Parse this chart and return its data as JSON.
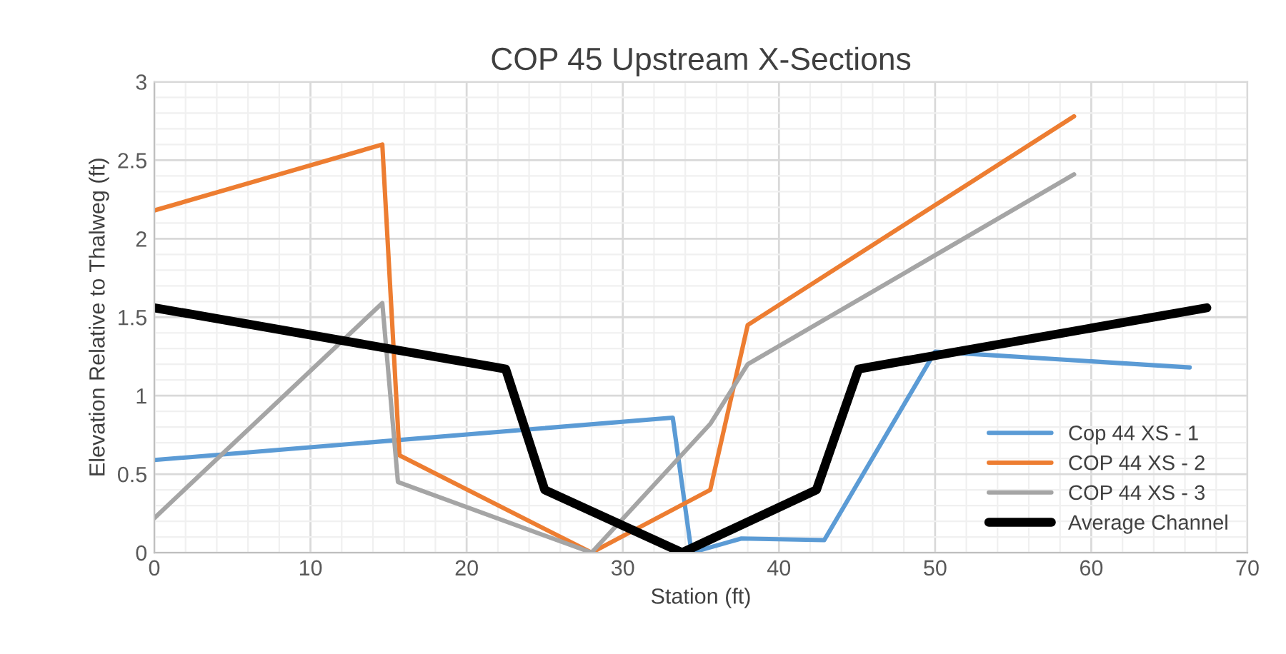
{
  "chart_data": {
    "type": "line",
    "title": "COP 45 Upstream X-Sections",
    "xlabel": "Station (ft)",
    "ylabel": "Elevation Relative to Thalweg (ft)",
    "xlim": [
      0,
      70
    ],
    "xticks": [
      0,
      10,
      20,
      30,
      40,
      50,
      60,
      70
    ],
    "ylim": [
      0,
      3
    ],
    "yticks": [
      0,
      0.5,
      1,
      1.5,
      2,
      2.5,
      3
    ],
    "grid": true,
    "legend": "bottom right",
    "marker": "none",
    "line_style": "solid",
    "series": [
      {
        "name": "Cop 44 XS - 1",
        "color": "#5b9bd5",
        "x": [
          0,
          33.2,
          34.4,
          37.6,
          42.9,
          50.0,
          66.3
        ],
        "values": [
          0.59,
          0.86,
          0,
          0.09,
          0.08,
          1.28,
          1.18
        ]
      },
      {
        "name": "COP 44 XS - 2",
        "color": "#ed7d31",
        "x": [
          0,
          14.6,
          15.7,
          28.0,
          35.6,
          38.0,
          58.9
        ],
        "values": [
          2.18,
          2.6,
          0.62,
          0,
          0.4,
          1.45,
          2.78
        ]
      },
      {
        "name": "COP 44 XS - 3",
        "color": "#a5a5a5",
        "x": [
          0,
          14.6,
          15.6,
          28.0,
          35.6,
          38.0,
          58.9
        ],
        "values": [
          0.22,
          1.59,
          0.45,
          0,
          0.82,
          1.2,
          2.41
        ]
      },
      {
        "name": "Average Channel",
        "color": "#000000",
        "x": [
          0,
          22.5,
          25.0,
          33.8,
          42.4,
          45.1,
          67.4
        ],
        "values": [
          1.56,
          1.17,
          0.4,
          0,
          0.4,
          1.17,
          1.56
        ]
      }
    ]
  }
}
